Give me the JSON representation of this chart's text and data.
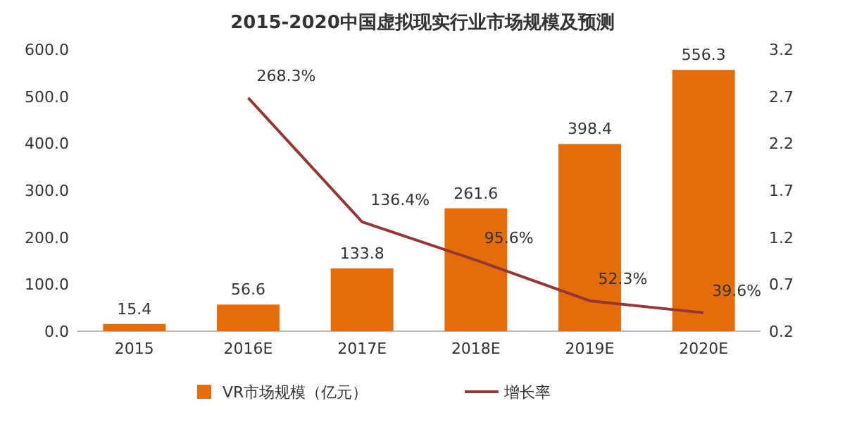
{
  "chart_data": {
    "type": "bar",
    "title": "2015-2020中国虚拟现实行业市场规模及预测",
    "categories": [
      "2015",
      "2016E",
      "2017E",
      "2018E",
      "2019E",
      "2020E"
    ],
    "series": [
      {
        "name": "VR市场规模（亿元）",
        "color": "#e46c0a",
        "values": [
          15.4,
          56.6,
          133.8,
          261.6,
          398.4,
          556.3
        ],
        "value_labels": [
          "15.4",
          "56.6",
          "133.8",
          "261.6",
          "398.4",
          "556.3"
        ]
      },
      {
        "name": "增长率",
        "type": "line",
        "axis": "y2",
        "color": "#953735",
        "values": [
          null,
          2.683,
          1.364,
          0.956,
          0.523,
          0.396
        ],
        "value_labels": [
          null,
          "268.3%",
          "136.4%",
          "95.6%",
          "52.3%",
          "39.6%"
        ]
      }
    ],
    "ylim": [
      0,
      600
    ],
    "yticks": [
      {
        "value": 0,
        "label": "0.0"
      },
      {
        "value": 100,
        "label": "100.0"
      },
      {
        "value": 200,
        "label": "200.0"
      },
      {
        "value": 300,
        "label": "300.0"
      },
      {
        "value": 400,
        "label": "400.0"
      },
      {
        "value": 500,
        "label": "500.0"
      },
      {
        "value": 600,
        "label": "600.0"
      }
    ],
    "y2lim": [
      0.2,
      3.2
    ],
    "y2ticks": [
      0.2,
      0.7,
      1.2,
      1.7,
      2.2,
      2.7,
      3.2
    ],
    "legend": "bottom",
    "grid": false
  }
}
